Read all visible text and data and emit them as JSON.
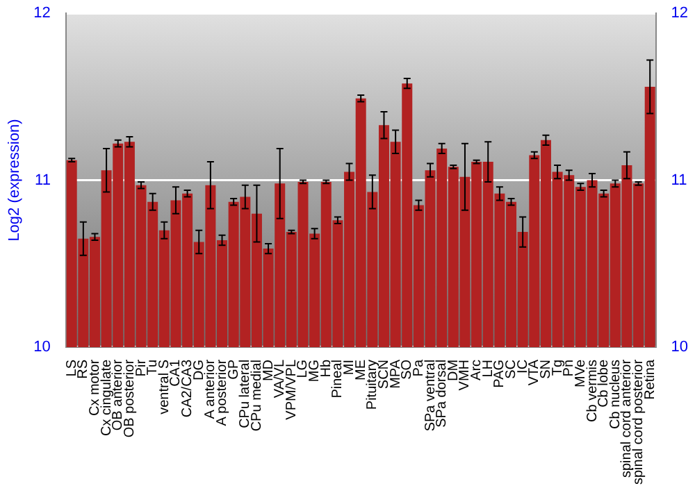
{
  "chart_data": {
    "type": "bar",
    "ylabel": "Log2 (expression)",
    "categories": [
      "LS",
      "RS",
      "Cx motor",
      "Cx cingulate",
      "OB anterior",
      "OB posterior",
      "Pir",
      "Tu",
      "ventral S",
      "CA1",
      "CA2/CA3",
      "DG",
      "A anterior",
      "A posterior",
      "GP",
      "CPu lateral",
      "CPu medial",
      "MD",
      "VA/VL",
      "VPM/VPL",
      "LG",
      "MG",
      "Hb",
      "Pineal",
      "MI",
      "ME",
      "Pituitary",
      "SCN",
      "MPA",
      "SO",
      "Pa",
      "SPa ventral",
      "SPa dorsal",
      "DM",
      "VMH",
      "Arc",
      "LH",
      "PAG",
      "SC",
      "IC",
      "VTA",
      "SN",
      "Tg",
      "Pn",
      "MVe",
      "Cb vermis",
      "Cb lobe",
      "Cb nucleus",
      "spinal cord anterior",
      "spinal cord posterior",
      "Retina"
    ],
    "values": [
      11.12,
      10.65,
      10.66,
      11.06,
      11.22,
      11.23,
      10.97,
      10.87,
      10.7,
      10.88,
      10.92,
      10.63,
      10.97,
      10.64,
      10.87,
      10.9,
      10.8,
      10.59,
      10.98,
      10.69,
      10.99,
      10.68,
      10.99,
      10.76,
      11.05,
      11.49,
      10.93,
      11.33,
      11.23,
      11.58,
      10.85,
      11.06,
      11.19,
      11.08,
      11.02,
      11.11,
      11.11,
      10.92,
      10.87,
      10.69,
      11.15,
      11.24,
      11.05,
      11.03,
      10.96,
      11.0,
      10.92,
      10.98,
      11.09,
      10.98,
      11.56
    ],
    "errors": [
      0.01,
      0.1,
      0.02,
      0.13,
      0.02,
      0.03,
      0.02,
      0.05,
      0.05,
      0.08,
      0.02,
      0.07,
      0.14,
      0.03,
      0.02,
      0.07,
      0.17,
      0.03,
      0.21,
      0.01,
      0.01,
      0.03,
      0.01,
      0.02,
      0.05,
      0.02,
      0.1,
      0.08,
      0.07,
      0.03,
      0.03,
      0.04,
      0.03,
      0.01,
      0.2,
      0.01,
      0.12,
      0.04,
      0.02,
      0.09,
      0.02,
      0.03,
      0.04,
      0.03,
      0.02,
      0.04,
      0.02,
      0.02,
      0.08,
      0.01,
      0.16
    ],
    "color": "#b22222",
    "ylim": [
      10,
      12
    ],
    "yticks": [
      10,
      11,
      12
    ],
    "y2lim": [
      10,
      12
    ],
    "y2ticks": [
      10,
      11,
      12
    ],
    "grid": "y",
    "legend": false
  }
}
